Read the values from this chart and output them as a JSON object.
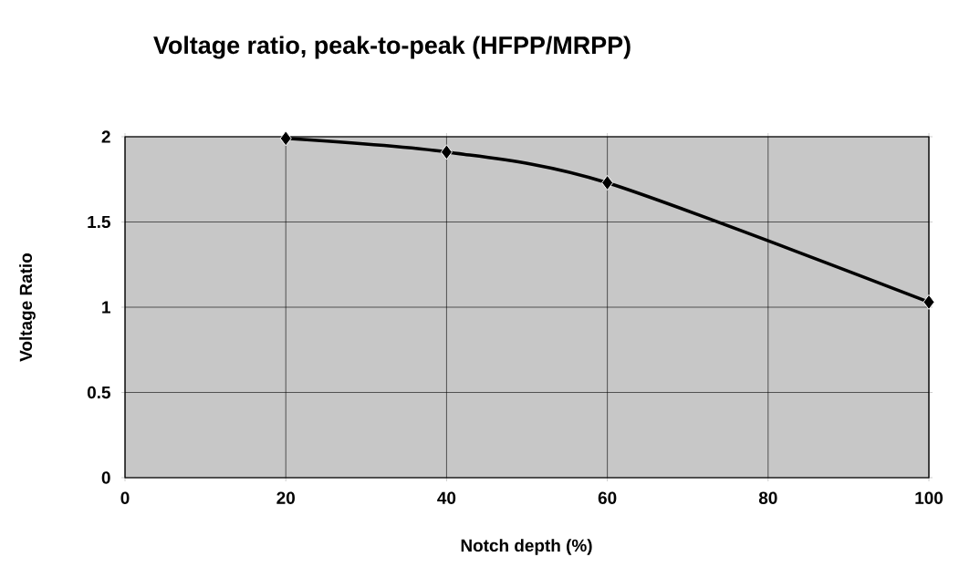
{
  "chart_data": {
    "type": "line",
    "title": "Voltage ratio, peak-to-peak (HFPP/MRPP)",
    "xlabel": "Notch depth (%)",
    "ylabel": "Voltage Ratio",
    "x": [
      20,
      40,
      60,
      100
    ],
    "values": [
      1.99,
      1.91,
      1.73,
      1.03
    ],
    "color": "#000000",
    "marker": "diamond",
    "line_style": "solid",
    "xlim": [
      0,
      100
    ],
    "xticks": [
      0,
      20,
      40,
      60,
      80,
      100
    ],
    "ylim": [
      0,
      2
    ],
    "yticks": [
      0,
      0.5,
      1,
      1.5,
      2
    ],
    "grid": true
  }
}
